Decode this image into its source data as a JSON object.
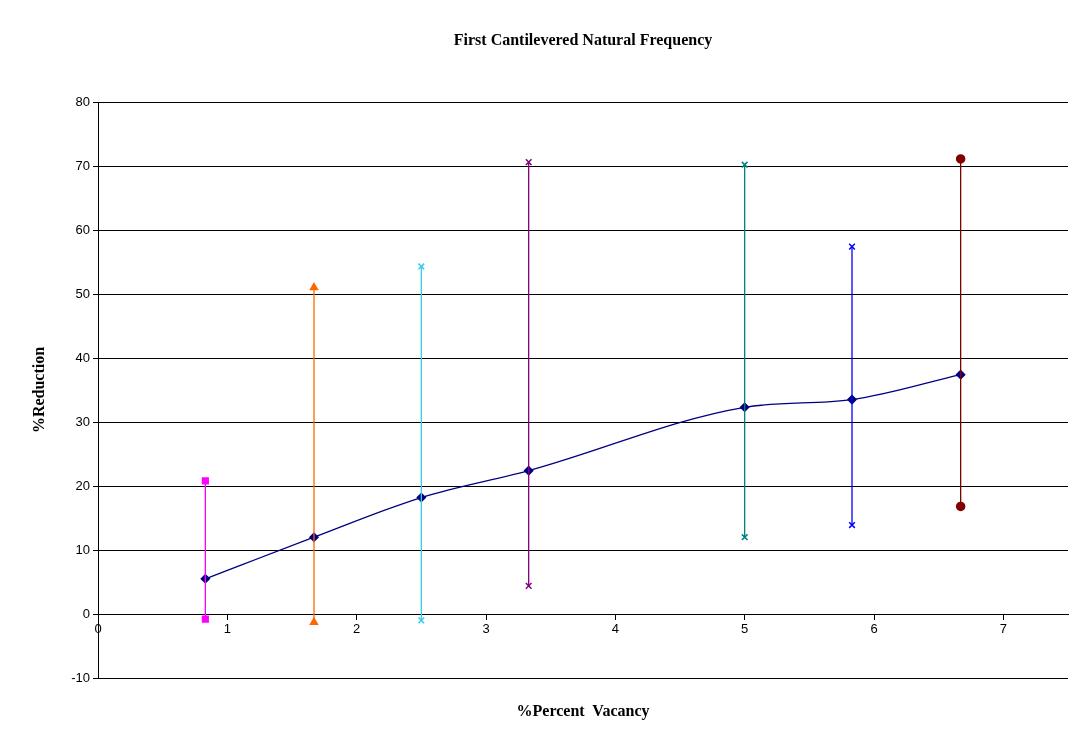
{
  "chart_data": {
    "type": "line",
    "title": "First Cantilevered Natural Frequency",
    "xlabel": "%Percent  Vacancy",
    "ylabel": "%Reduction",
    "xlim": [
      0,
      7.5
    ],
    "xticks": [
      0,
      1,
      2,
      3,
      4,
      5,
      6,
      7
    ],
    "ylim": [
      -10,
      80
    ],
    "yticks": [
      -10,
      0,
      10,
      20,
      30,
      40,
      50,
      60,
      70,
      80
    ],
    "grid": "y",
    "legend": false,
    "series": [
      {
        "color": "#ff00ff",
        "marker": "square",
        "x": [
          0.83,
          0.83
        ],
        "values": [
          20.8,
          -0.8
        ]
      },
      {
        "color": "#ff6600",
        "marker": "triangle",
        "x": [
          1.67,
          1.67
        ],
        "values": [
          51,
          -1.3
        ]
      },
      {
        "color": "#33ccee",
        "marker": "cross",
        "x": [
          2.5,
          2.5
        ],
        "values": [
          54.3,
          -1
        ]
      },
      {
        "color": "#800080",
        "marker": "cross",
        "x": [
          3.33,
          3.33
        ],
        "values": [
          70.6,
          4.4
        ]
      },
      {
        "color": "#008080",
        "marker": "cross",
        "x": [
          5,
          5
        ],
        "values": [
          70.2,
          12
        ]
      },
      {
        "color": "#0000ff",
        "marker": "cross",
        "x": [
          5.83,
          5.83
        ],
        "values": [
          57.4,
          13.9
        ]
      },
      {
        "color": "#800000",
        "marker": "circle",
        "x": [
          6.67,
          6.67
        ],
        "values": [
          71.1,
          16.8
        ]
      },
      {
        "color": "#000080",
        "marker": "diamond",
        "x": [
          0.83,
          1.67,
          2.5,
          3.33,
          5,
          5.83,
          6.67
        ],
        "values": [
          5.5,
          12,
          18.2,
          22.4,
          32.3,
          33.5,
          37.4
        ]
      }
    ]
  }
}
